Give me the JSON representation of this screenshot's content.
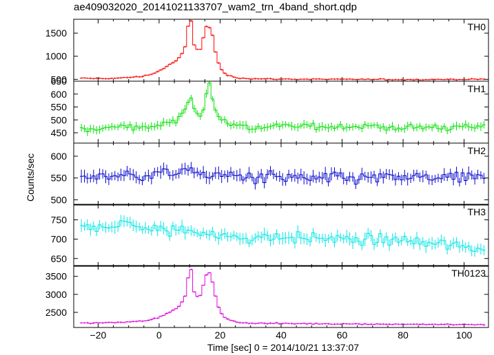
{
  "title": "ae409032020_20141021133707_wam2_trn_4band_short.qdp",
  "xlabel": "Time [sec] 0 = 2014/10/21 13:37:07",
  "ylabel": "Counts/sec",
  "chart_data": {
    "type": "line",
    "style": "histogram step with error bars",
    "xlim": [
      -28,
      108
    ],
    "x_ticks": [
      -20,
      0,
      20,
      40,
      60,
      80,
      100
    ],
    "grid": false,
    "panels": [
      {
        "name": "TH0",
        "color": "#ff0000",
        "ylim": [
          460,
          1800
        ],
        "y_ticks": [
          500,
          1000,
          1500
        ],
        "bins": [
          [
            -26,
            520
          ],
          [
            -20,
            520
          ],
          [
            -15,
            520
          ],
          [
            -10,
            540
          ],
          [
            -6,
            560
          ],
          [
            -2,
            620
          ],
          [
            0,
            680
          ],
          [
            2,
            760
          ],
          [
            5,
            880
          ],
          [
            7,
            980
          ],
          [
            8.5,
            1200
          ],
          [
            9.5,
            1650
          ],
          [
            10.5,
            1760
          ],
          [
            11.5,
            1250
          ],
          [
            12.5,
            1150
          ],
          [
            13.5,
            1150
          ],
          [
            14.5,
            1400
          ],
          [
            15.5,
            1640
          ],
          [
            16.5,
            1620
          ],
          [
            17.5,
            1450
          ],
          [
            18.5,
            1100
          ],
          [
            19.5,
            850
          ],
          [
            20.5,
            700
          ],
          [
            22,
            600
          ],
          [
            25,
            540
          ],
          [
            30,
            515
          ],
          [
            40,
            505
          ],
          [
            60,
            500
          ],
          [
            80,
            495
          ],
          [
            100,
            500
          ],
          [
            108,
            500
          ]
        ]
      },
      {
        "name": "TH1",
        "color": "#00e000",
        "ylim": [
          410,
          650
        ],
        "y_ticks": [
          450,
          500,
          550,
          600,
          650
        ],
        "bins": [
          [
            -26,
            465
          ],
          [
            -20,
            465
          ],
          [
            -15,
            470
          ],
          [
            -10,
            478
          ],
          [
            -5,
            470
          ],
          [
            0,
            480
          ],
          [
            4,
            495
          ],
          [
            7,
            515
          ],
          [
            9,
            560
          ],
          [
            10,
            590
          ],
          [
            11,
            570
          ],
          [
            12,
            530
          ],
          [
            14,
            500
          ],
          [
            15.5,
            600
          ],
          [
            16.5,
            640
          ],
          [
            17.5,
            590
          ],
          [
            19,
            520
          ],
          [
            22,
            495
          ],
          [
            25,
            480
          ],
          [
            30,
            470
          ],
          [
            40,
            475
          ],
          [
            60,
            475
          ],
          [
            80,
            470
          ],
          [
            100,
            472
          ],
          [
            108,
            475
          ]
        ]
      },
      {
        "name": "TH2",
        "color": "#0000cc",
        "ylim": [
          488,
          630
        ],
        "y_ticks": [
          500,
          550,
          600
        ],
        "bins": [
          [
            -26,
            555
          ],
          [
            -10,
            555
          ],
          [
            0,
            560
          ],
          [
            10,
            565
          ],
          [
            20,
            555
          ],
          [
            40,
            550
          ],
          [
            60,
            548
          ],
          [
            80,
            550
          ],
          [
            100,
            548
          ],
          [
            108,
            548
          ]
        ]
      },
      {
        "name": "TH3",
        "color": "#00e5e5",
        "ylim": [
          630,
          790
        ],
        "y_ticks": [
          650,
          700,
          750
        ],
        "bins": [
          [
            -26,
            730
          ],
          [
            -10,
            740
          ],
          [
            0,
            720
          ],
          [
            10,
            725
          ],
          [
            20,
            705
          ],
          [
            40,
            705
          ],
          [
            60,
            700
          ],
          [
            80,
            695
          ],
          [
            100,
            680
          ],
          [
            108,
            675
          ]
        ]
      },
      {
        "name": "TH0123",
        "color": "#dd00dd",
        "ylim": [
          2080,
          3800
        ],
        "y_ticks": [
          2500,
          3000,
          3500
        ],
        "bins": [
          [
            -26,
            2200
          ],
          [
            -20,
            2210
          ],
          [
            -15,
            2220
          ],
          [
            -10,
            2240
          ],
          [
            -6,
            2260
          ],
          [
            -2,
            2310
          ],
          [
            0,
            2360
          ],
          [
            2,
            2440
          ],
          [
            5,
            2580
          ],
          [
            7,
            2700
          ],
          [
            8.5,
            2950
          ],
          [
            9.5,
            3450
          ],
          [
            10.5,
            3700
          ],
          [
            11.5,
            3050
          ],
          [
            12.5,
            2950
          ],
          [
            13.5,
            2950
          ],
          [
            14.5,
            3250
          ],
          [
            15.5,
            3550
          ],
          [
            16.5,
            3600
          ],
          [
            17.5,
            3350
          ],
          [
            18.5,
            2950
          ],
          [
            19.5,
            2650
          ],
          [
            20.5,
            2450
          ],
          [
            22,
            2320
          ],
          [
            25,
            2240
          ],
          [
            30,
            2200
          ],
          [
            40,
            2190
          ],
          [
            60,
            2180
          ],
          [
            80,
            2170
          ],
          [
            100,
            2160
          ],
          [
            108,
            2160
          ]
        ]
      }
    ]
  }
}
